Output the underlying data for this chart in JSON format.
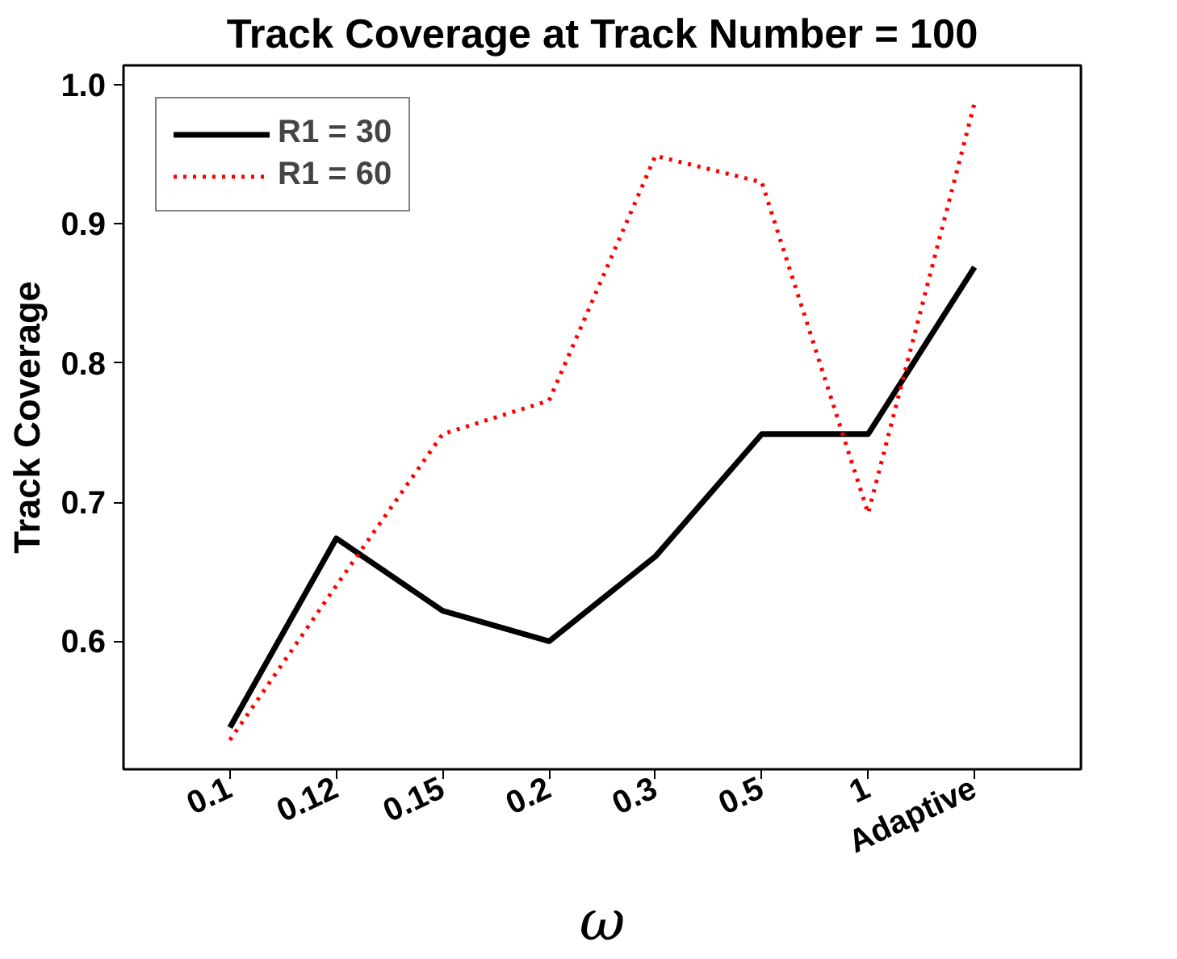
{
  "chart_data": {
    "type": "line",
    "title": "Track Coverage at Track Number = 100",
    "xlabel": "ω",
    "ylabel": "Track Coverage",
    "categories": [
      "0.1",
      "0.12",
      "0.15",
      "0.2",
      "0.3",
      "0.5",
      "1",
      "Adaptive"
    ],
    "series": [
      {
        "name": "R1 = 30",
        "color": "#000000",
        "line_style": "solid",
        "values": [
          0.538,
          0.674,
          0.622,
          0.6,
          0.661,
          0.749,
          0.749,
          0.869
        ]
      },
      {
        "name": "R1 = 60",
        "color": "#ff0000",
        "line_style": "dotted",
        "values": [
          0.529,
          0.64,
          0.749,
          0.773,
          0.949,
          0.93,
          0.692,
          0.987
        ]
      }
    ],
    "ylim": [
      0.508,
      1.014
    ],
    "yticks": [
      0.6,
      0.7,
      0.8,
      0.9,
      {
        "value": 1,
        "label": "1.0"
      }
    ],
    "grid": false,
    "legend": "top left",
    "marker": "none"
  }
}
